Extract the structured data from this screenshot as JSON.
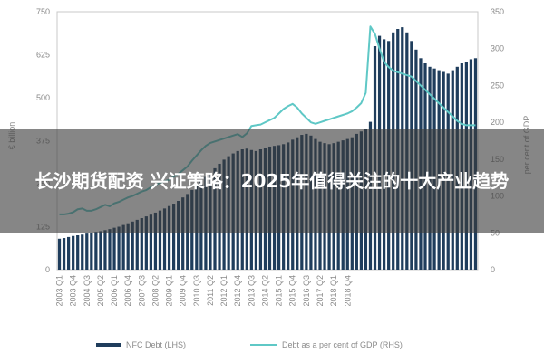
{
  "chart_data": {
    "type": "bar+line",
    "x_tick_labels": [
      "2003 Q1",
      "2003 Q4",
      "2004 Q3",
      "2005 Q2",
      "2006 Q1",
      "2006 Q4",
      "2007 Q3",
      "2008 Q2",
      "2009 Q1",
      "2009 Q4",
      "2010 Q3",
      "2011 Q2",
      "2012 Q1",
      "2012 Q4",
      "2013 Q3",
      "2014 Q2",
      "2015 Q1",
      "2015 Q4",
      "2016 Q3",
      "2017 Q2",
      "2018 Q1",
      "2018 Q4"
    ],
    "y_left_ticks": [
      "0",
      "125",
      "250",
      "375",
      "500",
      "625",
      "750"
    ],
    "y_right_ticks": [
      "0",
      "50",
      "100",
      "150",
      "200",
      "250",
      "300",
      "350"
    ],
    "ylabel_left": "€ billion",
    "ylabel_right": "per cent of GDP",
    "ylim_left": [
      0,
      750
    ],
    "ylim_right": [
      0,
      350
    ],
    "series": [
      {
        "name": "NFC Debt (LHS)",
        "kind": "bar",
        "axis": "left",
        "color": "#1f3d5c",
        "values": [
          90,
          92,
          95,
          98,
          100,
          102,
          105,
          108,
          110,
          112,
          115,
          118,
          122,
          125,
          130,
          135,
          140,
          145,
          150,
          155,
          160,
          166,
          172,
          178,
          185,
          192,
          200,
          210,
          220,
          232,
          245,
          258,
          270,
          282,
          295,
          308,
          320,
          330,
          338,
          345,
          350,
          352,
          348,
          345,
          350,
          355,
          358,
          360,
          362,
          365,
          370,
          378,
          385,
          392,
          395,
          390,
          380,
          372,
          368,
          365,
          368,
          372,
          376,
          380,
          385,
          395,
          402,
          410,
          430,
          650,
          680,
          670,
          665,
          690,
          700,
          705,
          690,
          665,
          640,
          615,
          600,
          590,
          585,
          580,
          575,
          570,
          580,
          590,
          600,
          605,
          612,
          615
        ]
      },
      {
        "name": "Debt as a per cent of GDP (RHS)",
        "kind": "line",
        "axis": "right",
        "color": "#5fc8c6",
        "values": [
          75,
          75,
          76,
          78,
          82,
          83,
          80,
          80,
          82,
          85,
          88,
          86,
          90,
          92,
          95,
          98,
          100,
          103,
          106,
          108,
          112,
          115,
          118,
          120,
          122,
          126,
          130,
          135,
          140,
          148,
          155,
          162,
          168,
          172,
          174,
          176,
          178,
          180,
          182,
          184,
          180,
          185,
          195,
          196,
          197,
          200,
          203,
          206,
          212,
          218,
          222,
          225,
          220,
          212,
          206,
          200,
          198,
          200,
          202,
          204,
          206,
          208,
          210,
          212,
          215,
          220,
          226,
          240,
          330,
          320,
          300,
          282,
          275,
          270,
          268,
          266,
          264,
          262,
          256,
          250,
          244,
          238,
          232,
          226,
          220,
          214,
          208,
          202,
          198,
          196,
          196,
          196
        ]
      }
    ],
    "legend": {
      "position": "bottom",
      "items": [
        "NFC Debt (LHS)",
        "Debt as a per cent of GDP (RHS)"
      ]
    },
    "grid": false
  },
  "overlay": {
    "title": "长沙期货配资 兴证策略：2025年值得关注的十大产业趋势"
  }
}
